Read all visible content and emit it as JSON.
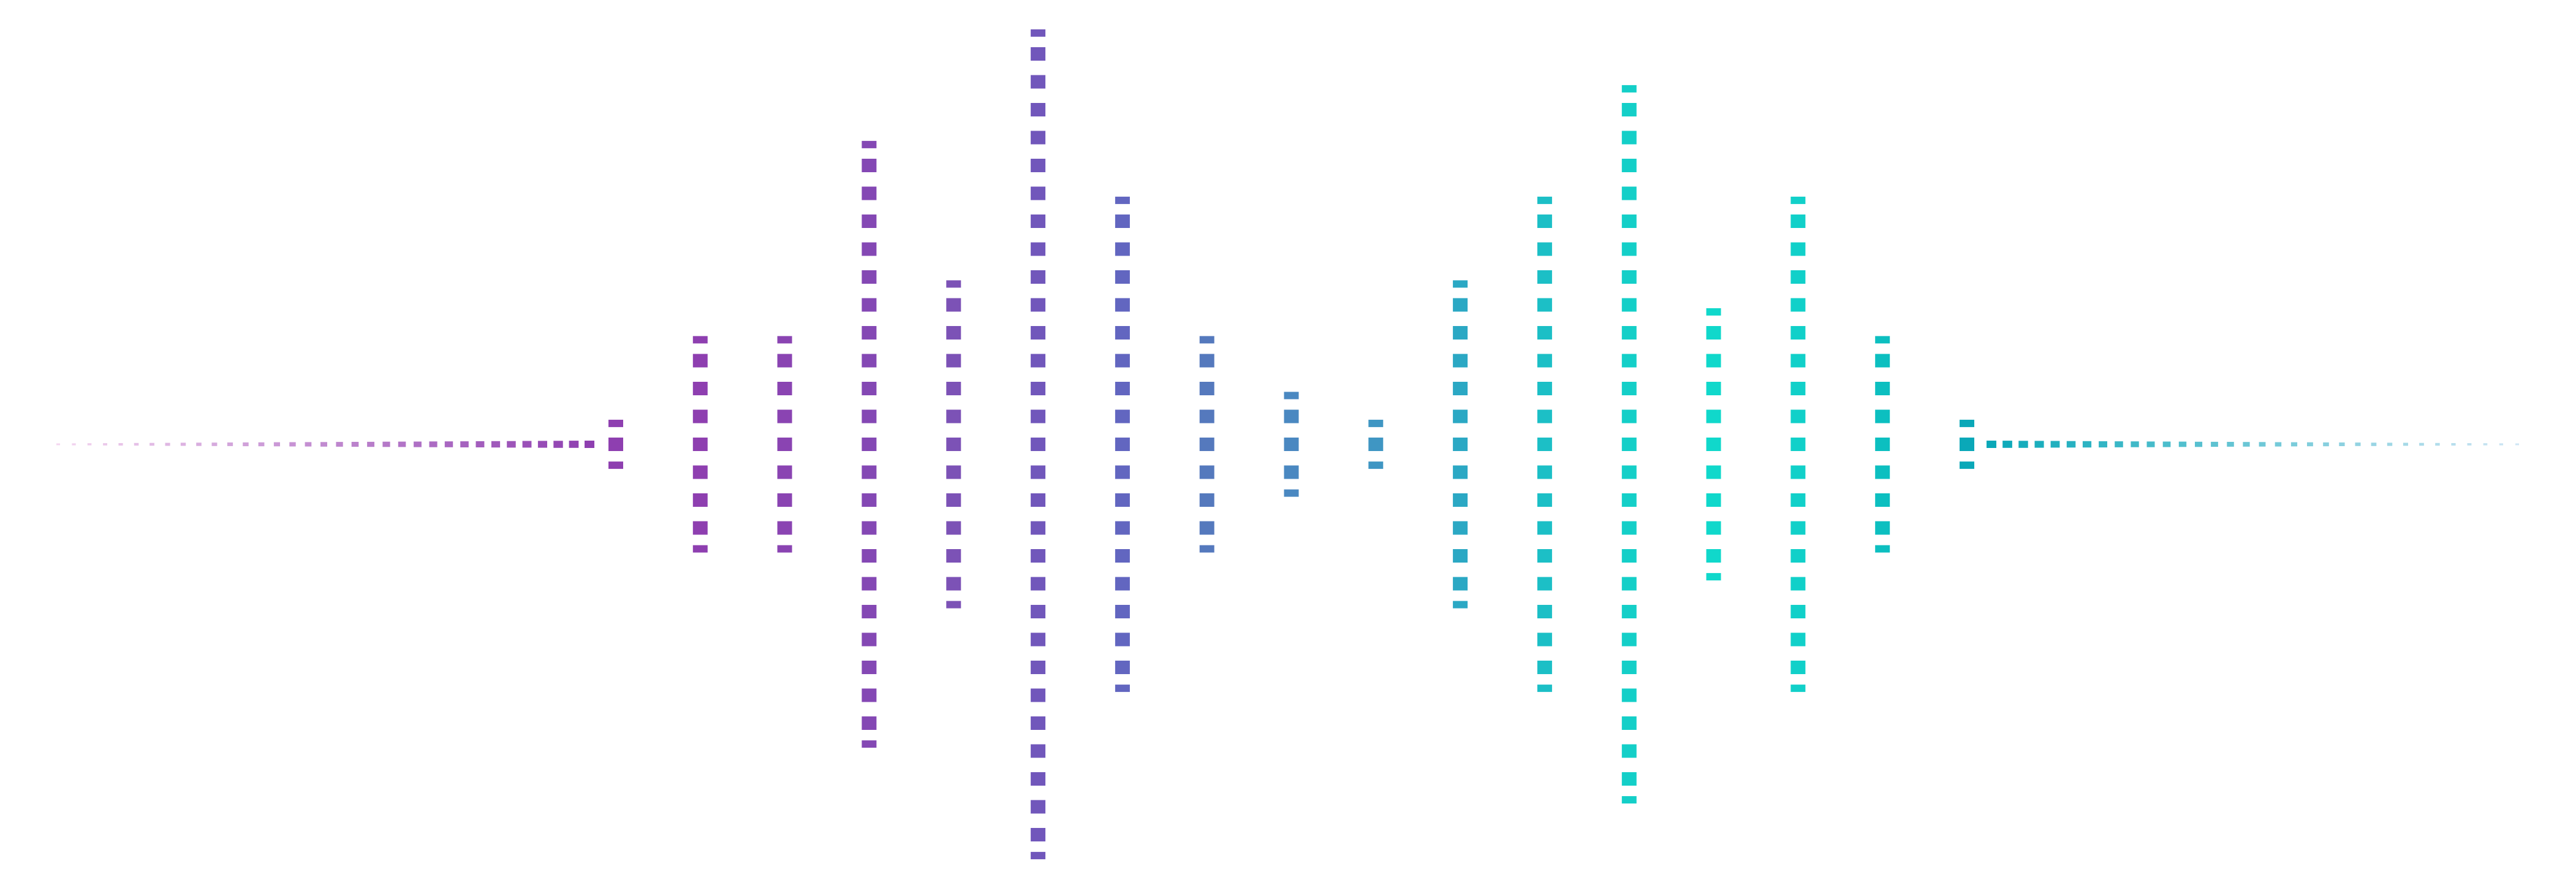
{
  "waveform": {
    "style": "dotted-segmented-bars",
    "colors": {
      "magenta": "#8e3fb0",
      "purple": "#7a55b8",
      "blue_violet": "#6a66c0",
      "steel_blue": "#5079bd",
      "blue": "#4a8bc2",
      "teal": "#2ba8c4",
      "cyan": "#1ec8c8",
      "aqua": "#12d6cc",
      "deep_teal": "#0aa8b8"
    },
    "left_tail": {
      "from_color": "#f4d6f0",
      "to_color": "#8e3fb0"
    },
    "right_tail": {
      "from_color": "#0aa8b8",
      "to_color": "#cfe6f4"
    },
    "bar_levels": [
      0.08,
      0.3,
      0.24,
      0.76,
      0.4,
      1.0,
      0.63,
      0.24,
      0.15,
      0.06,
      0.4,
      0.63,
      0.91,
      0.34,
      0.63,
      0.24,
      0.08
    ],
    "bar_colors": [
      "#8e3fb0",
      "#8e3fb0",
      "#8a44b2",
      "#8448b4",
      "#7c52b6",
      "#7157bb",
      "#6266c0",
      "#5579bd",
      "#4a88c1",
      "#3f96c3",
      "#2ba8c4",
      "#1cbfc6",
      "#14cfc8",
      "#10d8cb",
      "#11d0c9",
      "#0cbfc0",
      "#0aa8b8"
    ]
  }
}
